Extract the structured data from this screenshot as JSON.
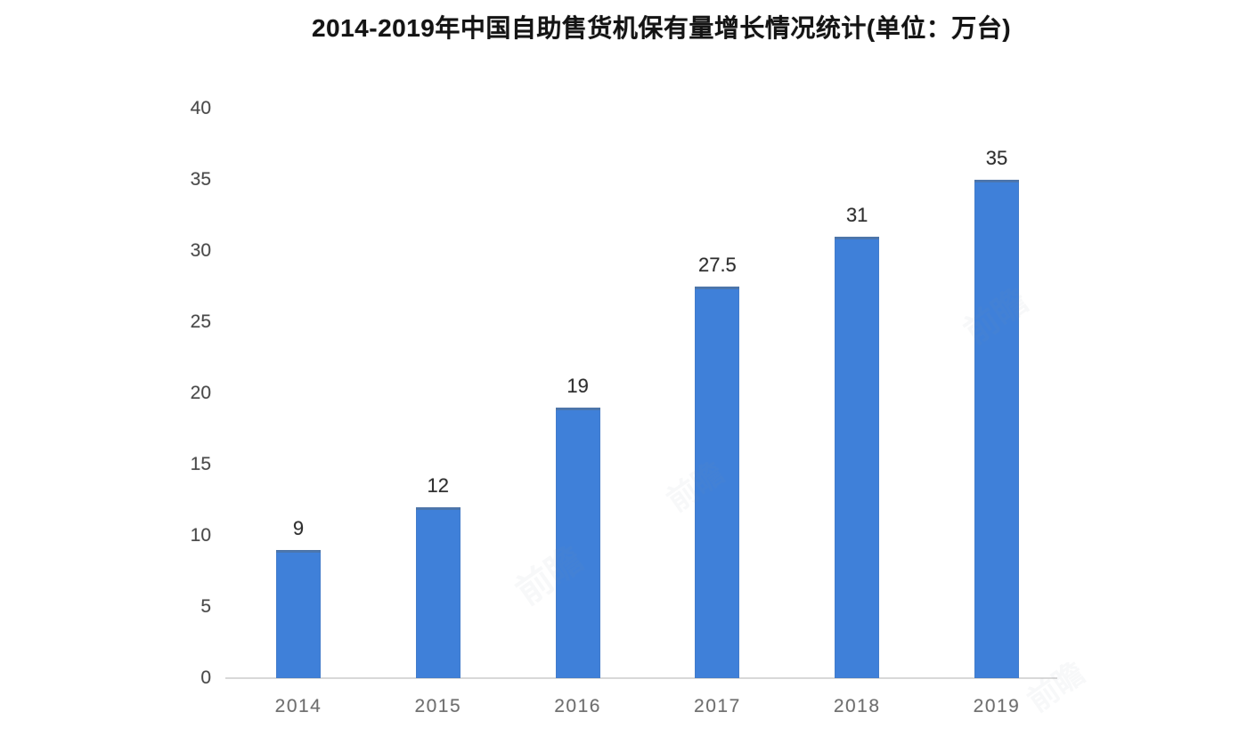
{
  "chart_data": {
    "type": "bar",
    "title": "2014-2019年中国自助售货机保有量增长情况统计(单位：万台)",
    "categories": [
      "2014",
      "2015",
      "2016",
      "2017",
      "2018",
      "2019"
    ],
    "values": [
      9,
      12,
      19,
      27.5,
      31,
      35
    ],
    "value_labels": [
      "9",
      "12",
      "19",
      "27.5",
      "31",
      "35"
    ],
    "xlabel": "",
    "ylabel": "",
    "ylim": [
      0,
      40
    ],
    "yticks": [
      0,
      5,
      10,
      15,
      20,
      25,
      30,
      35,
      40
    ],
    "grid": false,
    "legend": "none",
    "bar_color": "#3f80d9",
    "axis_line_color": "#d8d8d8",
    "title_color": "#141414",
    "tick_label_color": "#6e6e6e"
  },
  "watermark": {
    "text": "前瞻"
  }
}
